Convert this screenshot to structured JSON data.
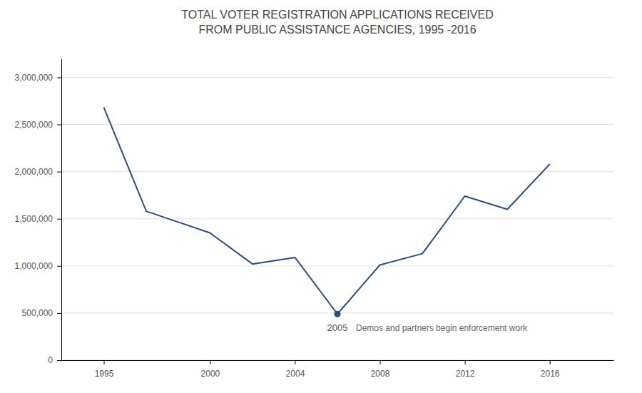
{
  "chart_data": {
    "type": "line",
    "title": "TOTAL VOTER REGISTRATION APPLICATIONS RECEIVED\nFROM PUBLIC ASSISTANCE AGENCIES, 1995 -2016",
    "x": [
      1995,
      1997,
      2000,
      2002,
      2004,
      2006,
      2008,
      2010,
      2012,
      2014,
      2016
    ],
    "values": [
      2680000,
      1580000,
      1350000,
      1020000,
      1090000,
      490000,
      1010000,
      1130000,
      1740000,
      1600000,
      2080000
    ],
    "color": "#2e4d7b",
    "annotations": [
      {
        "x": 2006,
        "y": 490000,
        "label": "2005",
        "text": "Demos and partners begin enforcement work"
      }
    ],
    "xlim": [
      1993,
      2019
    ],
    "ylim": [
      0,
      3200000
    ],
    "xticks": [
      1995,
      2000,
      2004,
      2008,
      2012,
      2016
    ],
    "yticks": [
      0,
      {
        "value": 500000,
        "label": "500,000"
      },
      {
        "value": 1000000,
        "label": "1,000,000"
      },
      {
        "value": 1500000,
        "label": "1,500,000"
      },
      {
        "value": 2000000,
        "label": "2,000,000"
      },
      {
        "value": 2500000,
        "label": "2,500,000"
      },
      {
        "value": 3000000,
        "label": "3,000,000"
      }
    ],
    "grid": true
  }
}
